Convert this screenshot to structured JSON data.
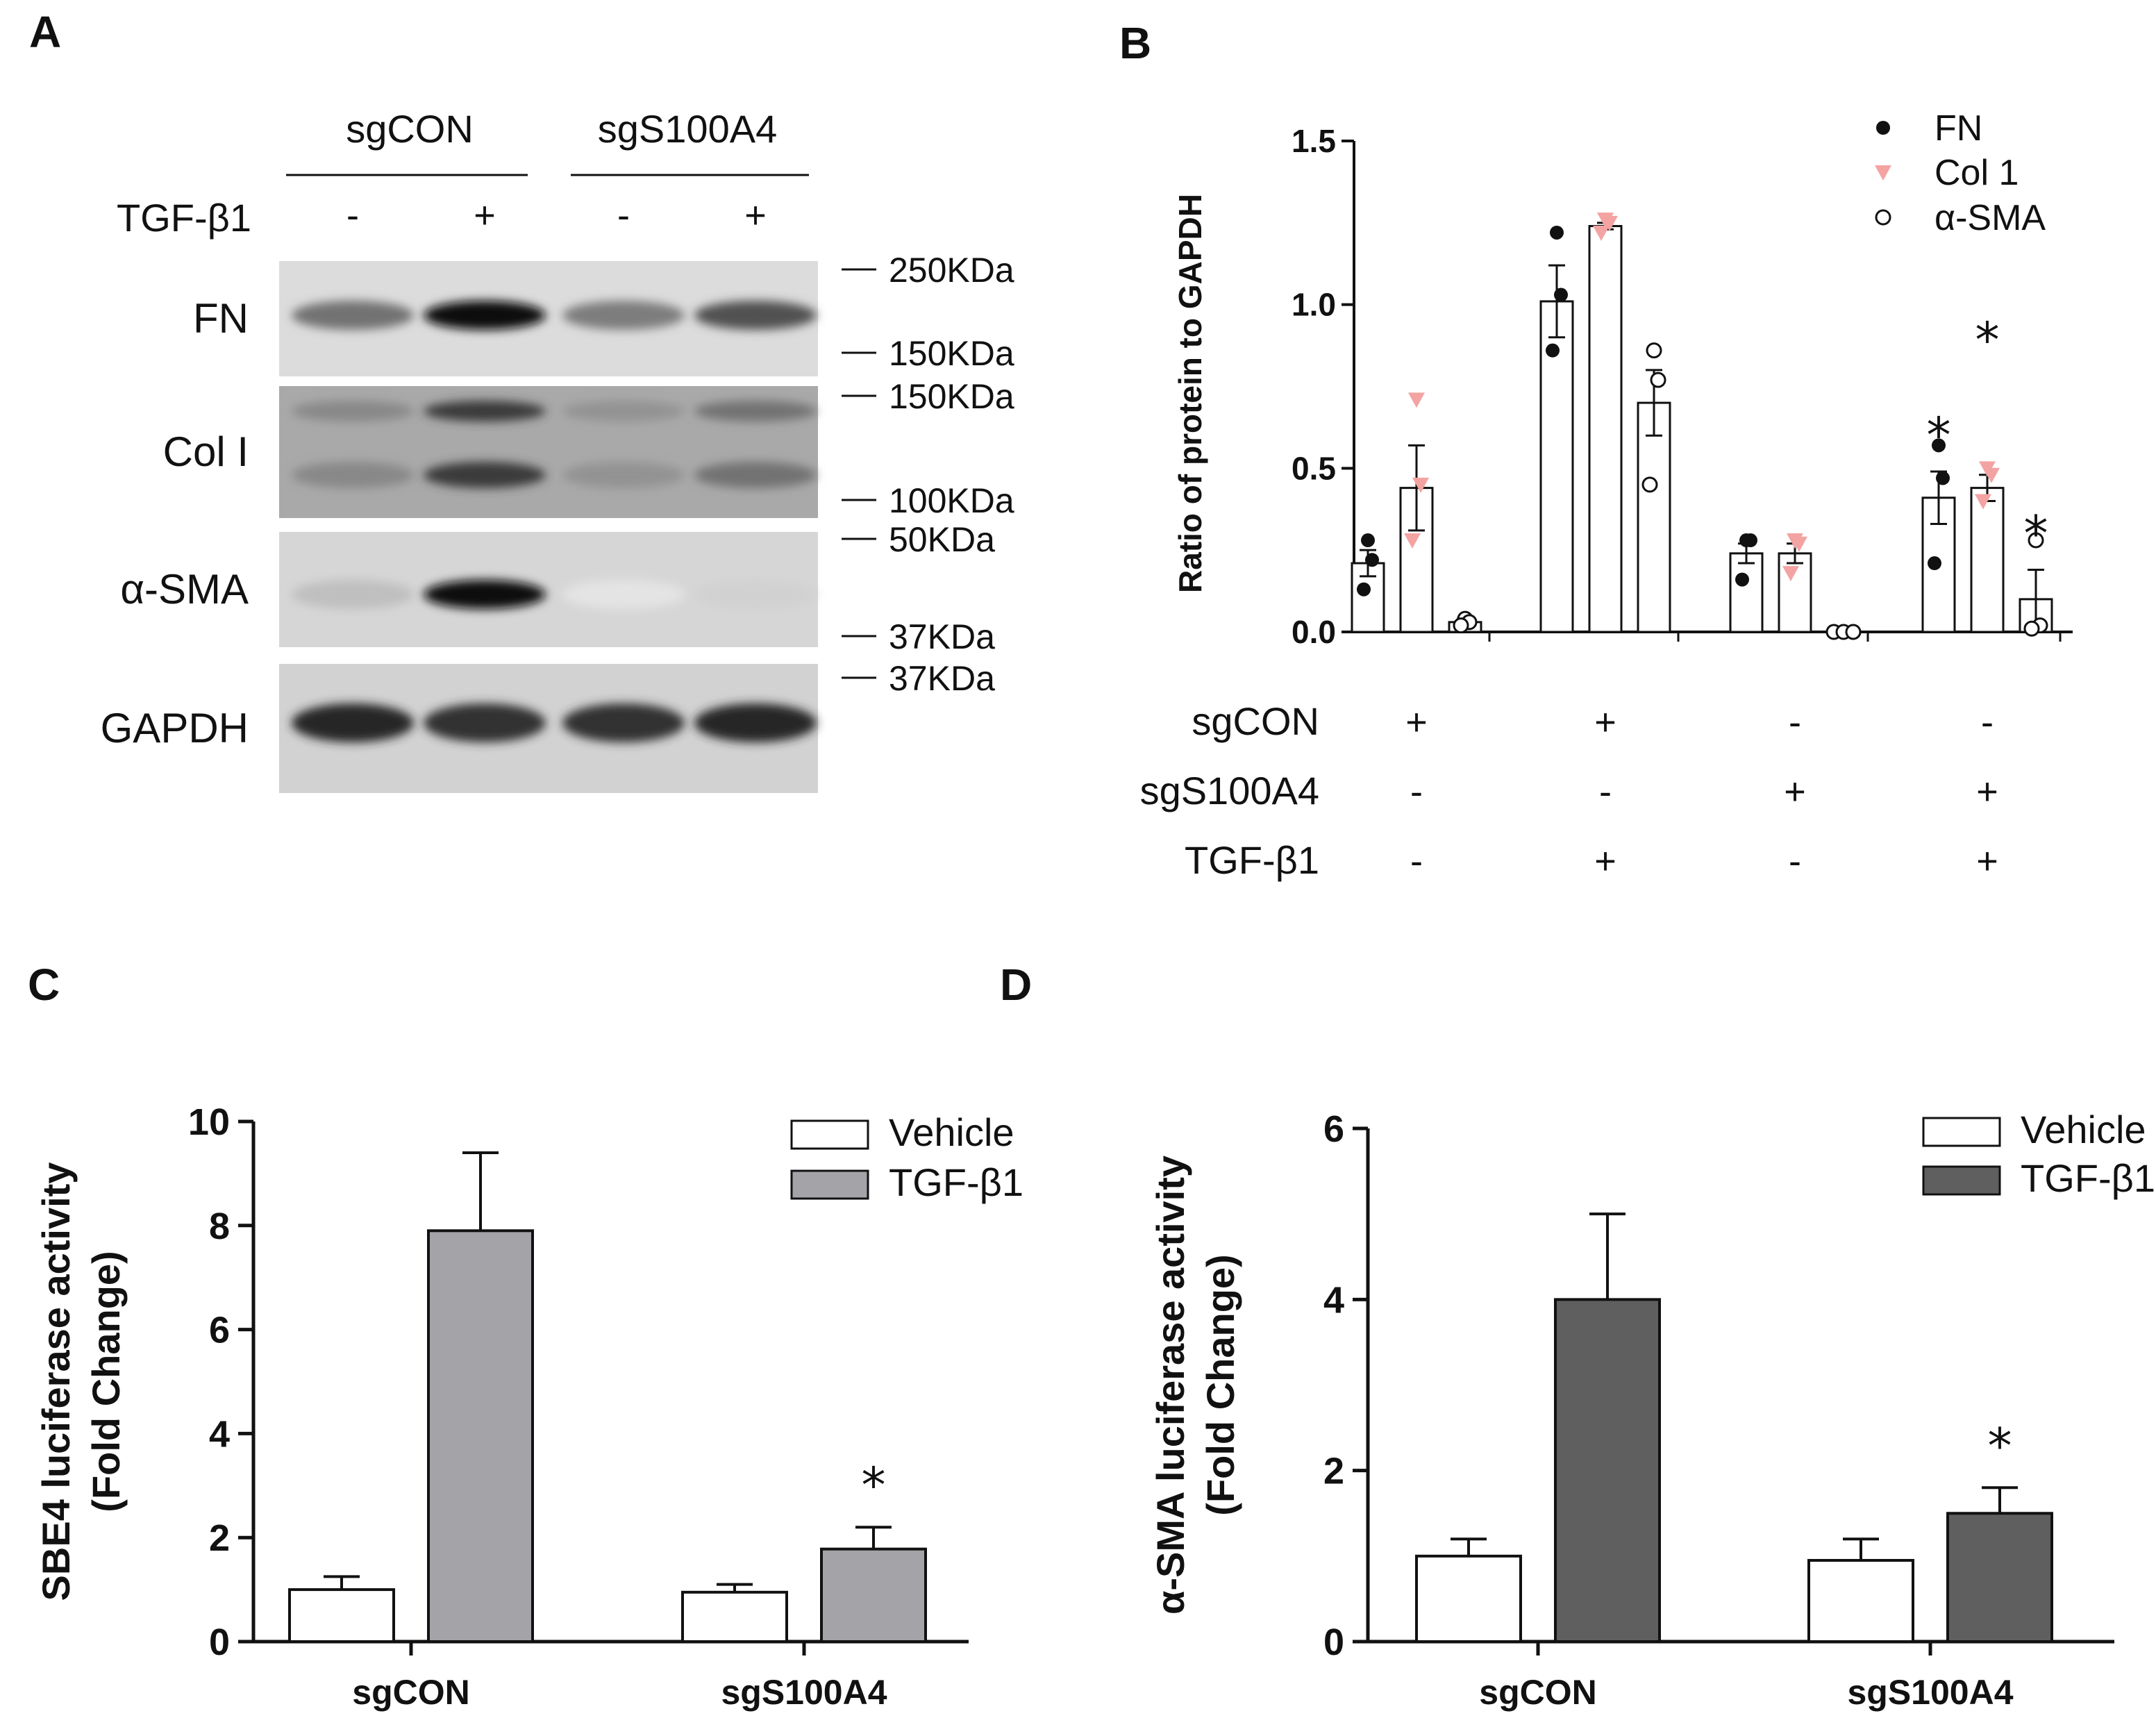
{
  "panels": {
    "A": {
      "letter": "A",
      "groups": [
        "sgCON",
        "sgS100A4"
      ],
      "treatment_label": "TGF-β1",
      "treatment_signs": [
        "-",
        "+",
        "-",
        "+"
      ],
      "blots": [
        {
          "label": "FN",
          "markers": [
            "250KDa",
            "150KDa"
          ],
          "lanes": [
            0.55,
            1.0,
            0.5,
            0.7
          ]
        },
        {
          "label": "Col I",
          "markers": [
            "150KDa",
            "100KDa"
          ],
          "lanes": [
            0.45,
            0.8,
            0.4,
            0.55
          ]
        },
        {
          "label": "α-SMA",
          "markers": [
            "50KDa",
            "37KDa"
          ],
          "lanes": [
            0.2,
            1.0,
            0.03,
            0.12
          ]
        },
        {
          "label": "GAPDH",
          "markers": [
            "37KDa"
          ],
          "lanes": [
            0.9,
            0.85,
            0.85,
            0.9
          ]
        }
      ]
    },
    "B": {
      "letter": "B"
    },
    "C": {
      "letter": "C"
    },
    "D": {
      "letter": "D"
    }
  },
  "chart_data": [
    {
      "panel": "B",
      "type": "bar",
      "ylabel": "Ratio of protein to GAPDH",
      "ylim": [
        0,
        1.5
      ],
      "yticks": [
        0.0,
        0.5,
        1.0,
        1.5
      ],
      "ytick_labels": [
        "0.0",
        "0.5",
        "1.0",
        "1.5"
      ],
      "legend_position": "top-right",
      "groups": [
        {
          "sgCON": "+",
          "sgS100A4": "-",
          "TGF-β1": "-"
        },
        {
          "sgCON": "+",
          "sgS100A4": "-",
          "TGF-β1": "+"
        },
        {
          "sgCON": "-",
          "sgS100A4": "+",
          "TGF-β1": "-"
        },
        {
          "sgCON": "-",
          "sgS100A4": "+",
          "TGF-β1": "+"
        }
      ],
      "condition_labels": [
        "sgCON",
        "sgS100A4",
        "TGF-β1"
      ],
      "series": [
        {
          "name": "FN",
          "marker": "filled-circle",
          "color": "#111111",
          "means": [
            0.21,
            1.01,
            0.24,
            0.41
          ],
          "sem": [
            0.04,
            0.11,
            0.03,
            0.08
          ],
          "points": [
            [
              0.28,
              0.22,
              0.13
            ],
            [
              1.22,
              1.03,
              0.86
            ],
            [
              0.28,
              0.28,
              0.16
            ],
            [
              0.57,
              0.47,
              0.21
            ]
          ],
          "significant": [
            false,
            false,
            false,
            true
          ]
        },
        {
          "name": "Col 1",
          "marker": "triangle-down",
          "color": "#f4a3a3",
          "means": [
            0.44,
            1.24,
            0.24,
            0.44
          ],
          "sem": [
            0.13,
            0.01,
            0.03,
            0.04
          ],
          "points": [
            [
              0.71,
              0.45,
              0.28
            ],
            [
              1.26,
              1.25,
              1.22
            ],
            [
              0.28,
              0.27,
              0.18
            ],
            [
              0.5,
              0.48,
              0.4
            ]
          ],
          "significant": [
            false,
            false,
            false,
            true
          ]
        },
        {
          "name": "α-SMA",
          "marker": "open-circle",
          "color": "#111111",
          "means": [
            0.03,
            0.7,
            0.0,
            0.1
          ],
          "sem": [
            0.01,
            0.1,
            0.0,
            0.09
          ],
          "points": [
            [
              0.04,
              0.03,
              0.02
            ],
            [
              0.86,
              0.77,
              0.45
            ],
            [
              0.0,
              0.0,
              0.0
            ],
            [
              0.28,
              0.02,
              0.01
            ]
          ],
          "significant": [
            false,
            false,
            false,
            true
          ]
        }
      ],
      "annotation": "*"
    },
    {
      "panel": "C",
      "type": "bar",
      "ylabel": "SBE4 luciferase activity\n(Fold Change)",
      "ylabel_lines": [
        "SBE4 luciferase activity",
        "(Fold Change)"
      ],
      "categories": [
        "sgCON",
        "sgS100A4"
      ],
      "ylim": [
        0,
        10
      ],
      "yticks": [
        0,
        2,
        4,
        6,
        8,
        10
      ],
      "legend_position": "top-right",
      "series": [
        {
          "name": "Vehicle",
          "color": "#ffffff",
          "values": [
            1.0,
            0.95
          ],
          "err": [
            0.25,
            0.15
          ]
        },
        {
          "name": "TGF-β1",
          "color": "#a3a3a8",
          "values": [
            7.9,
            1.78
          ],
          "err": [
            1.5,
            0.42
          ]
        }
      ],
      "significance": [
        {
          "category": "sgS100A4",
          "series": "TGF-β1",
          "label": "*"
        }
      ]
    },
    {
      "panel": "D",
      "type": "bar",
      "ylabel": "α-SMA luciferase activity\n(Fold Change)",
      "ylabel_lines": [
        "α-SMA luciferase activity",
        "(Fold Change)"
      ],
      "categories": [
        "sgCON",
        "sgS100A4"
      ],
      "ylim": [
        0,
        6
      ],
      "yticks": [
        0,
        2,
        4,
        6
      ],
      "legend_position": "top-right",
      "series": [
        {
          "name": "Vehicle",
          "color": "#ffffff",
          "values": [
            1.0,
            0.95
          ],
          "err": [
            0.2,
            0.25
          ]
        },
        {
          "name": "TGF-β1",
          "color": "#5f5f5f",
          "values": [
            4.0,
            1.5
          ],
          "err": [
            1.0,
            0.3
          ]
        }
      ],
      "significance": [
        {
          "category": "sgS100A4",
          "series": "TGF-β1",
          "label": "*"
        }
      ]
    }
  ]
}
